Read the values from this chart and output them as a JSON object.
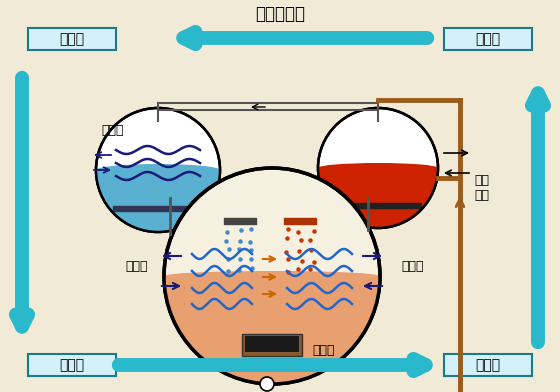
{
  "bg_color": "#f0ead6",
  "title": "制冷剂蒸汽",
  "labels": {
    "condenser": "冷凝器",
    "generator": "发生器",
    "evaporator": "蒸发器",
    "absorber": "吸收器",
    "cooling_water_top": "冷却水",
    "refrigerant_water": "冷媒水",
    "cooling_water_bottom": "冷却水",
    "drive_heat": "驱动\n热源",
    "solution_pump": "溶液泵"
  },
  "teal": "#2ab8cc",
  "brown": "#9b5b1a",
  "dark_gray": "#555555",
  "coil_color": "#1a1a7a",
  "coil_color2": "#2266cc",
  "drop_color_left": "#4488cc",
  "drop_color_right": "#cc3300",
  "orange_arrow": "#cc6600",
  "cond_vessel_fill": "#a8d8ea",
  "cond_vessel_water": "#5ab0d0",
  "gen_vessel_fill": "#f5f0e0",
  "gen_vessel_water": "#cc2200",
  "main_circle_fill": "#f5f0e0",
  "absorber_fill": "#e8a070",
  "pump_box_color": "#8b5a2b",
  "pump_box_dark": "#1a1a1a"
}
